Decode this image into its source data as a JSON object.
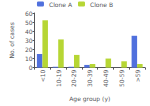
{
  "chart_data": {
    "type": "bar",
    "xlabel": "Age group (y)",
    "ylabel": "No. of cases",
    "categories": [
      "<10",
      "10-19",
      "20-29",
      "30-39",
      "40-49",
      "50-59",
      ">59"
    ],
    "series": [
      {
        "name": "Clone A",
        "values": [
          15,
          1,
          1,
          3,
          0,
          0,
          35
        ]
      },
      {
        "name": "Clone B",
        "values": [
          52,
          31,
          14,
          4,
          10,
          7,
          4
        ]
      }
    ],
    "ylim": [
      0,
      60
    ],
    "yticks": [
      0,
      10,
      20,
      30,
      40,
      50,
      60
    ],
    "grid": false,
    "legend": "upper center"
  }
}
